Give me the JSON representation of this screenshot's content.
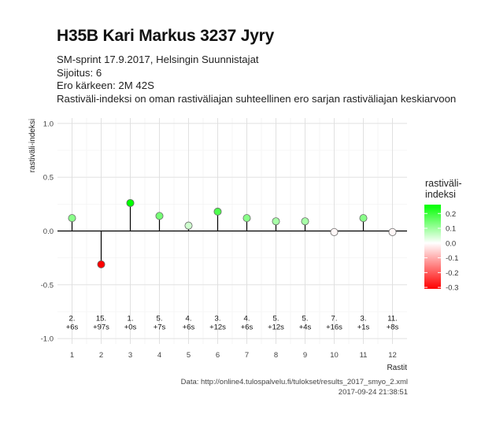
{
  "header": {
    "title": "H35B Kari Markus 3237 Jyry",
    "subtitle_lines": [
      "SM-sprint 17.9.2017, Helsingin Suunnistajat",
      "Sijoitus: 6",
      "Ero kärkeen: 2M 42S",
      "Rastiväli-indeksi on oman rastiväliajan suhteellinen ero sarjan rastiväliajan keskiarvoon"
    ]
  },
  "caption": {
    "line1": "Data: http://online4.tulospalvelu.fi/tulokset/results_2017_smyo_2.xml",
    "line2": "2017-09-24 21:38:51"
  },
  "legend": {
    "title_line1": "rastiväli-",
    "title_line2": "indeksi",
    "tick_labels": [
      "0.2",
      "0.1",
      "0.0",
      "-0.1",
      "-0.2",
      "-0.3"
    ],
    "tick_values": [
      0.2,
      0.1,
      0.0,
      -0.1,
      -0.2,
      -0.3
    ],
    "range": [
      -0.31,
      0.26
    ],
    "colors": {
      "low": "#ff0000",
      "mid": "#ffffff",
      "high": "#00ff00"
    }
  },
  "chart_data": {
    "type": "scatter",
    "style": "lollipop",
    "xlabel": "Rastit",
    "ylabel": "rastiväli-indeksi",
    "ylim": [
      -1.05,
      1.05
    ],
    "y_ticks": [
      -1.0,
      -0.5,
      0.0,
      0.5,
      1.0
    ],
    "y_tick_labels": [
      "-1.0",
      "-0.5",
      "0.0",
      "0.5",
      "1.0"
    ],
    "x_ticks": [
      1,
      2,
      3,
      4,
      5,
      6,
      7,
      8,
      9,
      10,
      11,
      12
    ],
    "x_tick_labels": [
      "1",
      "2",
      "3",
      "4",
      "5",
      "6",
      "7",
      "8",
      "9",
      "10",
      "11",
      "12"
    ],
    "grid": true,
    "points": [
      {
        "x": 1,
        "y": 0.12,
        "rank": "2.",
        "diff": "+6s"
      },
      {
        "x": 2,
        "y": -0.31,
        "rank": "15.",
        "diff": "+97s"
      },
      {
        "x": 3,
        "y": 0.26,
        "rank": "1.",
        "diff": "+0s"
      },
      {
        "x": 4,
        "y": 0.14,
        "rank": "5.",
        "diff": "+7s"
      },
      {
        "x": 5,
        "y": 0.05,
        "rank": "4.",
        "diff": "+6s"
      },
      {
        "x": 6,
        "y": 0.18,
        "rank": "3.",
        "diff": "+12s"
      },
      {
        "x": 7,
        "y": 0.12,
        "rank": "4.",
        "diff": "+6s"
      },
      {
        "x": 8,
        "y": 0.09,
        "rank": "5.",
        "diff": "+12s"
      },
      {
        "x": 9,
        "y": 0.09,
        "rank": "5.",
        "diff": "+4s"
      },
      {
        "x": 10,
        "y": -0.01,
        "rank": "7.",
        "diff": "+16s"
      },
      {
        "x": 11,
        "y": 0.12,
        "rank": "3.",
        "diff": "+1s"
      },
      {
        "x": 12,
        "y": -0.01,
        "rank": "11.",
        "diff": "+8s"
      }
    ],
    "label_y": -0.9,
    "legend_position": "right"
  }
}
